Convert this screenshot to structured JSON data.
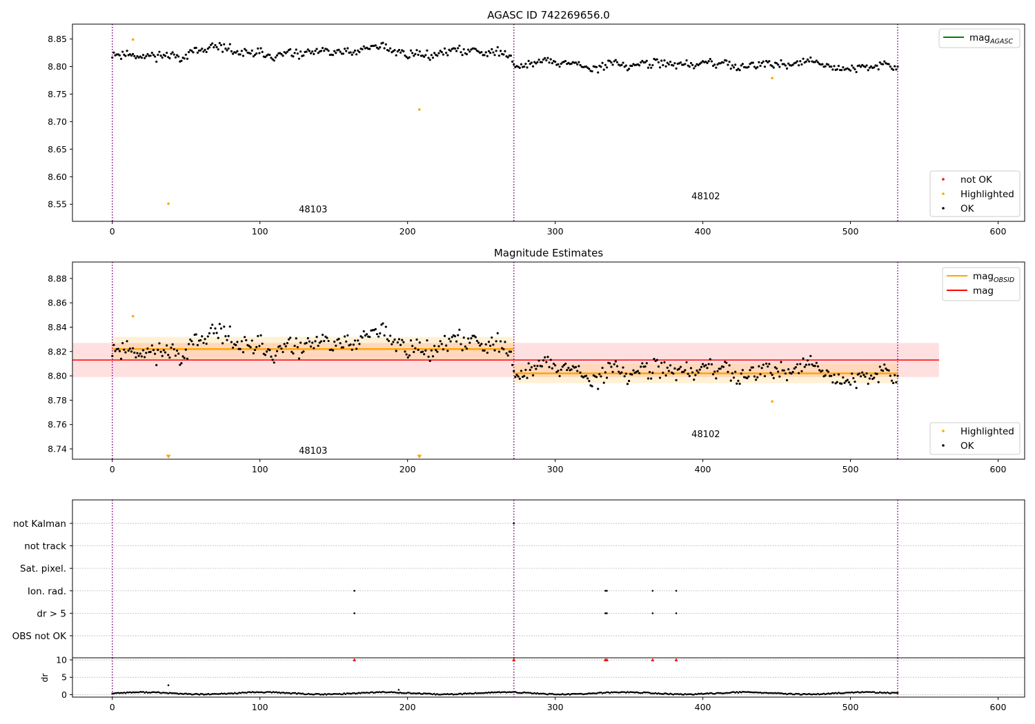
{
  "chart_data": [
    {
      "id": "p1",
      "type": "scatter",
      "title": "AGASC ID 742269656.0",
      "xlim": [
        -27,
        618
      ],
      "ylim": [
        8.519,
        8.877
      ],
      "xticks": [
        0,
        100,
        200,
        300,
        400,
        500,
        600
      ],
      "yticks": [
        8.55,
        8.6,
        8.65,
        8.7,
        8.75,
        8.8,
        8.85
      ],
      "ytick_decimals": 2,
      "vlines": [
        0,
        272,
        532
      ],
      "obs_labels": [
        {
          "text": "48103",
          "x": 136,
          "y": 8.535
        },
        {
          "text": "48102",
          "x": 402,
          "y": 8.559
        }
      ],
      "obs_segments": [
        {
          "x_start": 0,
          "x_end": 271,
          "points": 273,
          "base": 8.824,
          "trend": 0.0,
          "jitter": 0.0075,
          "seed": 11
        },
        {
          "x_start": 272,
          "x_end": 532,
          "points": 261,
          "base": 8.803,
          "trend": 0.0,
          "jitter": 0.0065,
          "seed": 29
        }
      ],
      "highlighted_points": [
        [
          14,
          8.849
        ],
        [
          38,
          8.551
        ],
        [
          208,
          8.722
        ],
        [
          447,
          8.779
        ]
      ],
      "legend_upper": [
        {
          "label": "mag",
          "subscript": "AGASC",
          "color": "#008000"
        }
      ],
      "legend_lower": [
        {
          "label": "not OK",
          "color": "#ff0000"
        },
        {
          "label": "Highlighted",
          "color": "#ffa500"
        },
        {
          "label": "OK",
          "color": "#000000"
        }
      ]
    },
    {
      "id": "p2",
      "type": "scatter",
      "title": "Magnitude Estimates",
      "xlim": [
        -27,
        618
      ],
      "ylim": [
        8.7315,
        8.8935
      ],
      "xticks": [
        0,
        100,
        200,
        300,
        400,
        500,
        600
      ],
      "yticks": [
        8.74,
        8.76,
        8.78,
        8.8,
        8.82,
        8.84,
        8.86,
        8.88
      ],
      "ytick_decimals": 2,
      "vlines": [
        0,
        272,
        532
      ],
      "obs_labels": [
        {
          "text": "48103",
          "x": 136,
          "y": 8.736
        },
        {
          "text": "48102",
          "x": 402,
          "y": 8.7495
        }
      ],
      "mag_line": {
        "y": 8.813,
        "x_start": -27,
        "x_end": 560,
        "band": [
          8.799,
          8.827
        ],
        "color": "#ff0000"
      },
      "obs_mags": [
        {
          "y": 8.822,
          "x_start": 0,
          "x_end": 272,
          "band": [
            8.813,
            8.832
          ]
        },
        {
          "y": 8.802,
          "x_start": 272,
          "x_end": 532,
          "band": [
            8.794,
            8.81
          ]
        }
      ],
      "highlighted_points": [
        [
          14,
          8.849
        ],
        [
          447,
          8.779
        ]
      ],
      "out_of_range_markers": [
        38,
        208
      ],
      "legend_upper": [
        {
          "label": "mag",
          "subscript": "OBSID",
          "color": "#ffa500"
        },
        {
          "label": "mag",
          "subscript": "",
          "color": "#ff0000"
        }
      ],
      "legend_lower": [
        {
          "label": "Highlighted",
          "color": "#ffa500"
        },
        {
          "label": "OK",
          "color": "#000000"
        }
      ]
    },
    {
      "id": "p3",
      "type": "scatter",
      "title": "",
      "xlim": [
        -27,
        618
      ],
      "flag_labels": [
        "not Kalman",
        "not track",
        "Sat. pixel.",
        "Ion. rad.",
        "dr > 5",
        "OBS not OK"
      ],
      "vlines": [
        0,
        272,
        532
      ],
      "flag_points": [
        {
          "flag": "not Kalman",
          "x": [
            272
          ]
        },
        {
          "flag": "Ion. rad.",
          "x": [
            164,
            334,
            335,
            366,
            382
          ]
        },
        {
          "flag": "dr > 5",
          "x": [
            164,
            334,
            335,
            366,
            382
          ]
        }
      ]
    },
    {
      "id": "p4",
      "type": "scatter",
      "title": "",
      "xlim": [
        -27,
        618
      ],
      "ylim": [
        -0.7,
        10.6
      ],
      "xticks": [
        0,
        100,
        200,
        300,
        400,
        500,
        600
      ],
      "yticks": [
        0,
        5,
        10
      ],
      "ytick_decimals": 0,
      "ylabel": "dr",
      "vlines": [
        0,
        272,
        532
      ],
      "dr_outliers": [
        [
          38,
          2.7
        ],
        [
          194,
          1.4
        ]
      ],
      "dr_clipped": [
        164,
        272,
        334,
        335,
        366,
        382
      ]
    }
  ]
}
